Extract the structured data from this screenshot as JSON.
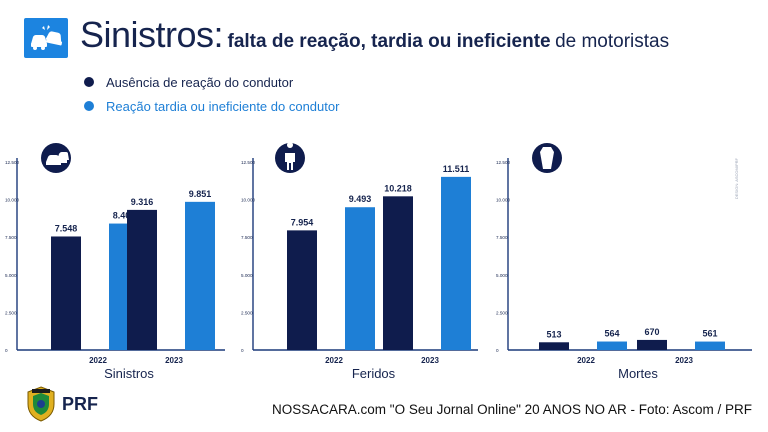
{
  "header": {
    "icon": "car-crash-icon",
    "title_main": "Sinistros:",
    "title_bold": "falta de reação, tardia ou ineficiente",
    "title_rest": "de motoristas"
  },
  "legend": [
    {
      "label": "Ausência de reação do condutor",
      "color": "#0f1c4d"
    },
    {
      "label": "Reação tardia ou ineficiente do condutor",
      "color": "#1e7fd6"
    }
  ],
  "colors": {
    "dark": "#0f1c4d",
    "light": "#1e7fd6",
    "axis": "#1c3a7a",
    "text": "#16244e"
  },
  "chart_data": [
    {
      "type": "bar",
      "title": "Sinistros",
      "icon": "car-crash-icon",
      "categories": [
        "2022",
        "2023"
      ],
      "ylim": [
        0,
        12500
      ],
      "yticks": [
        0,
        2500,
        5000,
        7500,
        10000,
        12500
      ],
      "ytick_labels": [
        "0",
        "2.500",
        "5.000",
        "7.500",
        "10.000",
        "12.500"
      ],
      "series": [
        {
          "values": [
            7548,
            9316
          ],
          "labels": [
            "7.548",
            "9.316"
          ],
          "color": "#0f1c4d"
        },
        {
          "values": [
            8407,
            9851
          ],
          "labels": [
            "8.407",
            "9.851"
          ],
          "color": "#1e7fd6"
        }
      ]
    },
    {
      "type": "bar",
      "title": "Feridos",
      "icon": "injured-person-icon",
      "categories": [
        "2022",
        "2023"
      ],
      "ylim": [
        0,
        12500
      ],
      "yticks": [
        0,
        2500,
        5000,
        7500,
        10000,
        12500
      ],
      "ytick_labels": [
        "0",
        "2.500",
        "5.000",
        "7.500",
        "10.000",
        "12.500"
      ],
      "series": [
        {
          "values": [
            7954,
            10218
          ],
          "labels": [
            "7.954",
            "10.218"
          ],
          "color": "#0f1c4d"
        },
        {
          "values": [
            9493,
            11511
          ],
          "labels": [
            "9.493",
            "11.511"
          ],
          "color": "#1e7fd6"
        }
      ]
    },
    {
      "type": "bar",
      "title": "Mortes",
      "icon": "coffin-icon",
      "categories": [
        "2022",
        "2023"
      ],
      "ylim": [
        0,
        12500
      ],
      "yticks": [
        0,
        2500,
        5000,
        7500,
        10000,
        12500
      ],
      "ytick_labels": [
        "0",
        "2.500",
        "5.000",
        "7.500",
        "10.000",
        "12.500"
      ],
      "series": [
        {
          "values": [
            513,
            670
          ],
          "labels": [
            "513",
            "670"
          ],
          "color": "#0f1c4d"
        },
        {
          "values": [
            564,
            561
          ],
          "labels": [
            "564",
            "561"
          ],
          "color": "#1e7fd6"
        }
      ]
    }
  ],
  "footer": {
    "logo_text": "PRF",
    "logo_badge_text": "POLÍCIA",
    "credit": "NOSSACARA.com \"O Seu Jornal Online\" 20 ANOS NO AR - Foto: Ascom / PRF",
    "vertical_credit": "DESIGN: ASCOM/PRF"
  }
}
